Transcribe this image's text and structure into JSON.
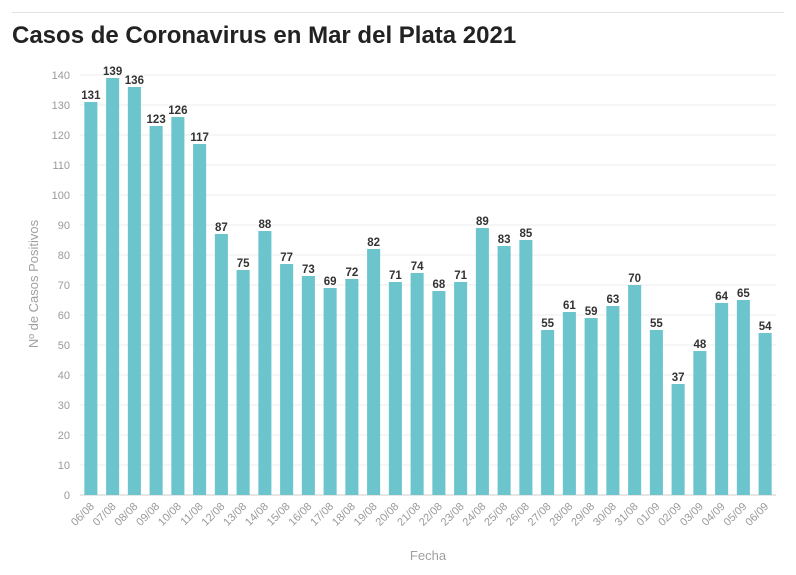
{
  "chart_data": {
    "type": "bar",
    "title": "Casos de Coronavirus en Mar del Plata 2021",
    "xlabel": "Fecha",
    "ylabel": "Nº de Casos Positivos",
    "ylim": [
      0,
      140
    ],
    "yticks": [
      0,
      10,
      20,
      30,
      40,
      50,
      60,
      70,
      80,
      90,
      100,
      110,
      120,
      130,
      140
    ],
    "grid": true,
    "bar_color": "#6cc5cd",
    "categories": [
      "06/08",
      "07/08",
      "08/08",
      "09/08",
      "10/08",
      "11/08",
      "12/08",
      "13/08",
      "14/08",
      "15/08",
      "16/08",
      "17/08",
      "18/08",
      "19/08",
      "20/08",
      "21/08",
      "22/08",
      "23/08",
      "24/08",
      "25/08",
      "26/08",
      "27/08",
      "28/08",
      "29/08",
      "30/08",
      "31/08",
      "01/09",
      "02/09",
      "03/09",
      "04/09",
      "05/09",
      "06/09"
    ],
    "values": [
      131,
      139,
      136,
      123,
      126,
      117,
      87,
      75,
      88,
      77,
      73,
      69,
      72,
      82,
      71,
      74,
      68,
      71,
      89,
      83,
      85,
      55,
      61,
      59,
      63,
      70,
      55,
      37,
      48,
      64,
      65,
      54
    ]
  }
}
